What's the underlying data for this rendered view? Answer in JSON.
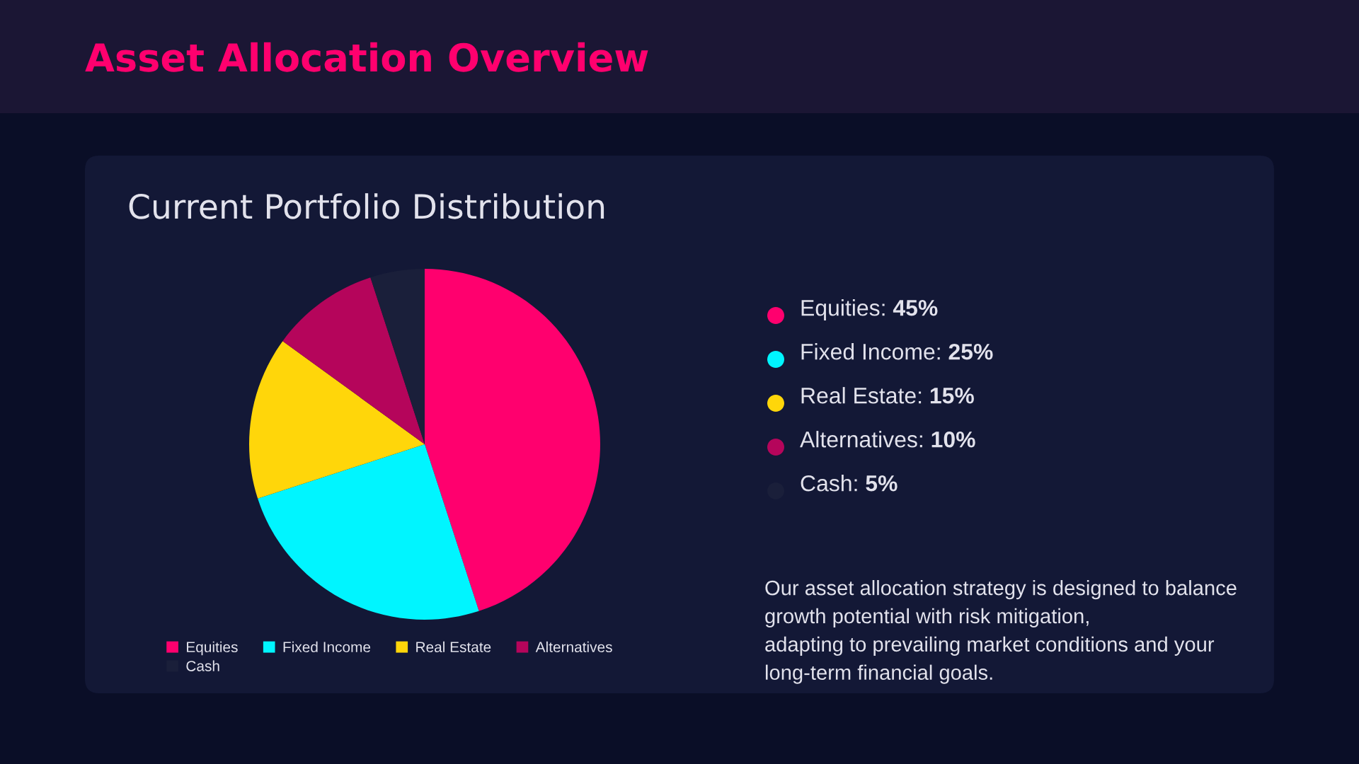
{
  "chart_data": {
    "type": "pie",
    "title": "Asset Allocation Overview",
    "subtitle": "Current Portfolio Distribution",
    "categories": [
      "Equities",
      "Fixed Income",
      "Real Estate",
      "Alternatives",
      "Cash"
    ],
    "values": [
      45,
      25,
      15,
      10,
      5
    ],
    "colors": [
      "#ff006e",
      "#00f5ff",
      "#ffd60a",
      "#b5055b",
      "#1a1f3a"
    ],
    "legend": "bottom",
    "annotations": [
      "Equities: 45%",
      "Fixed Income: 25%",
      "Real Estate: 15%",
      "Alternatives: 10%",
      "Cash: 5%",
      "Our asset allocation strategy is designed to balance\ngrowth potential with risk mitigation,\nadapting to prevailing market conditions and your\nlong-term financial goals."
    ]
  }
}
